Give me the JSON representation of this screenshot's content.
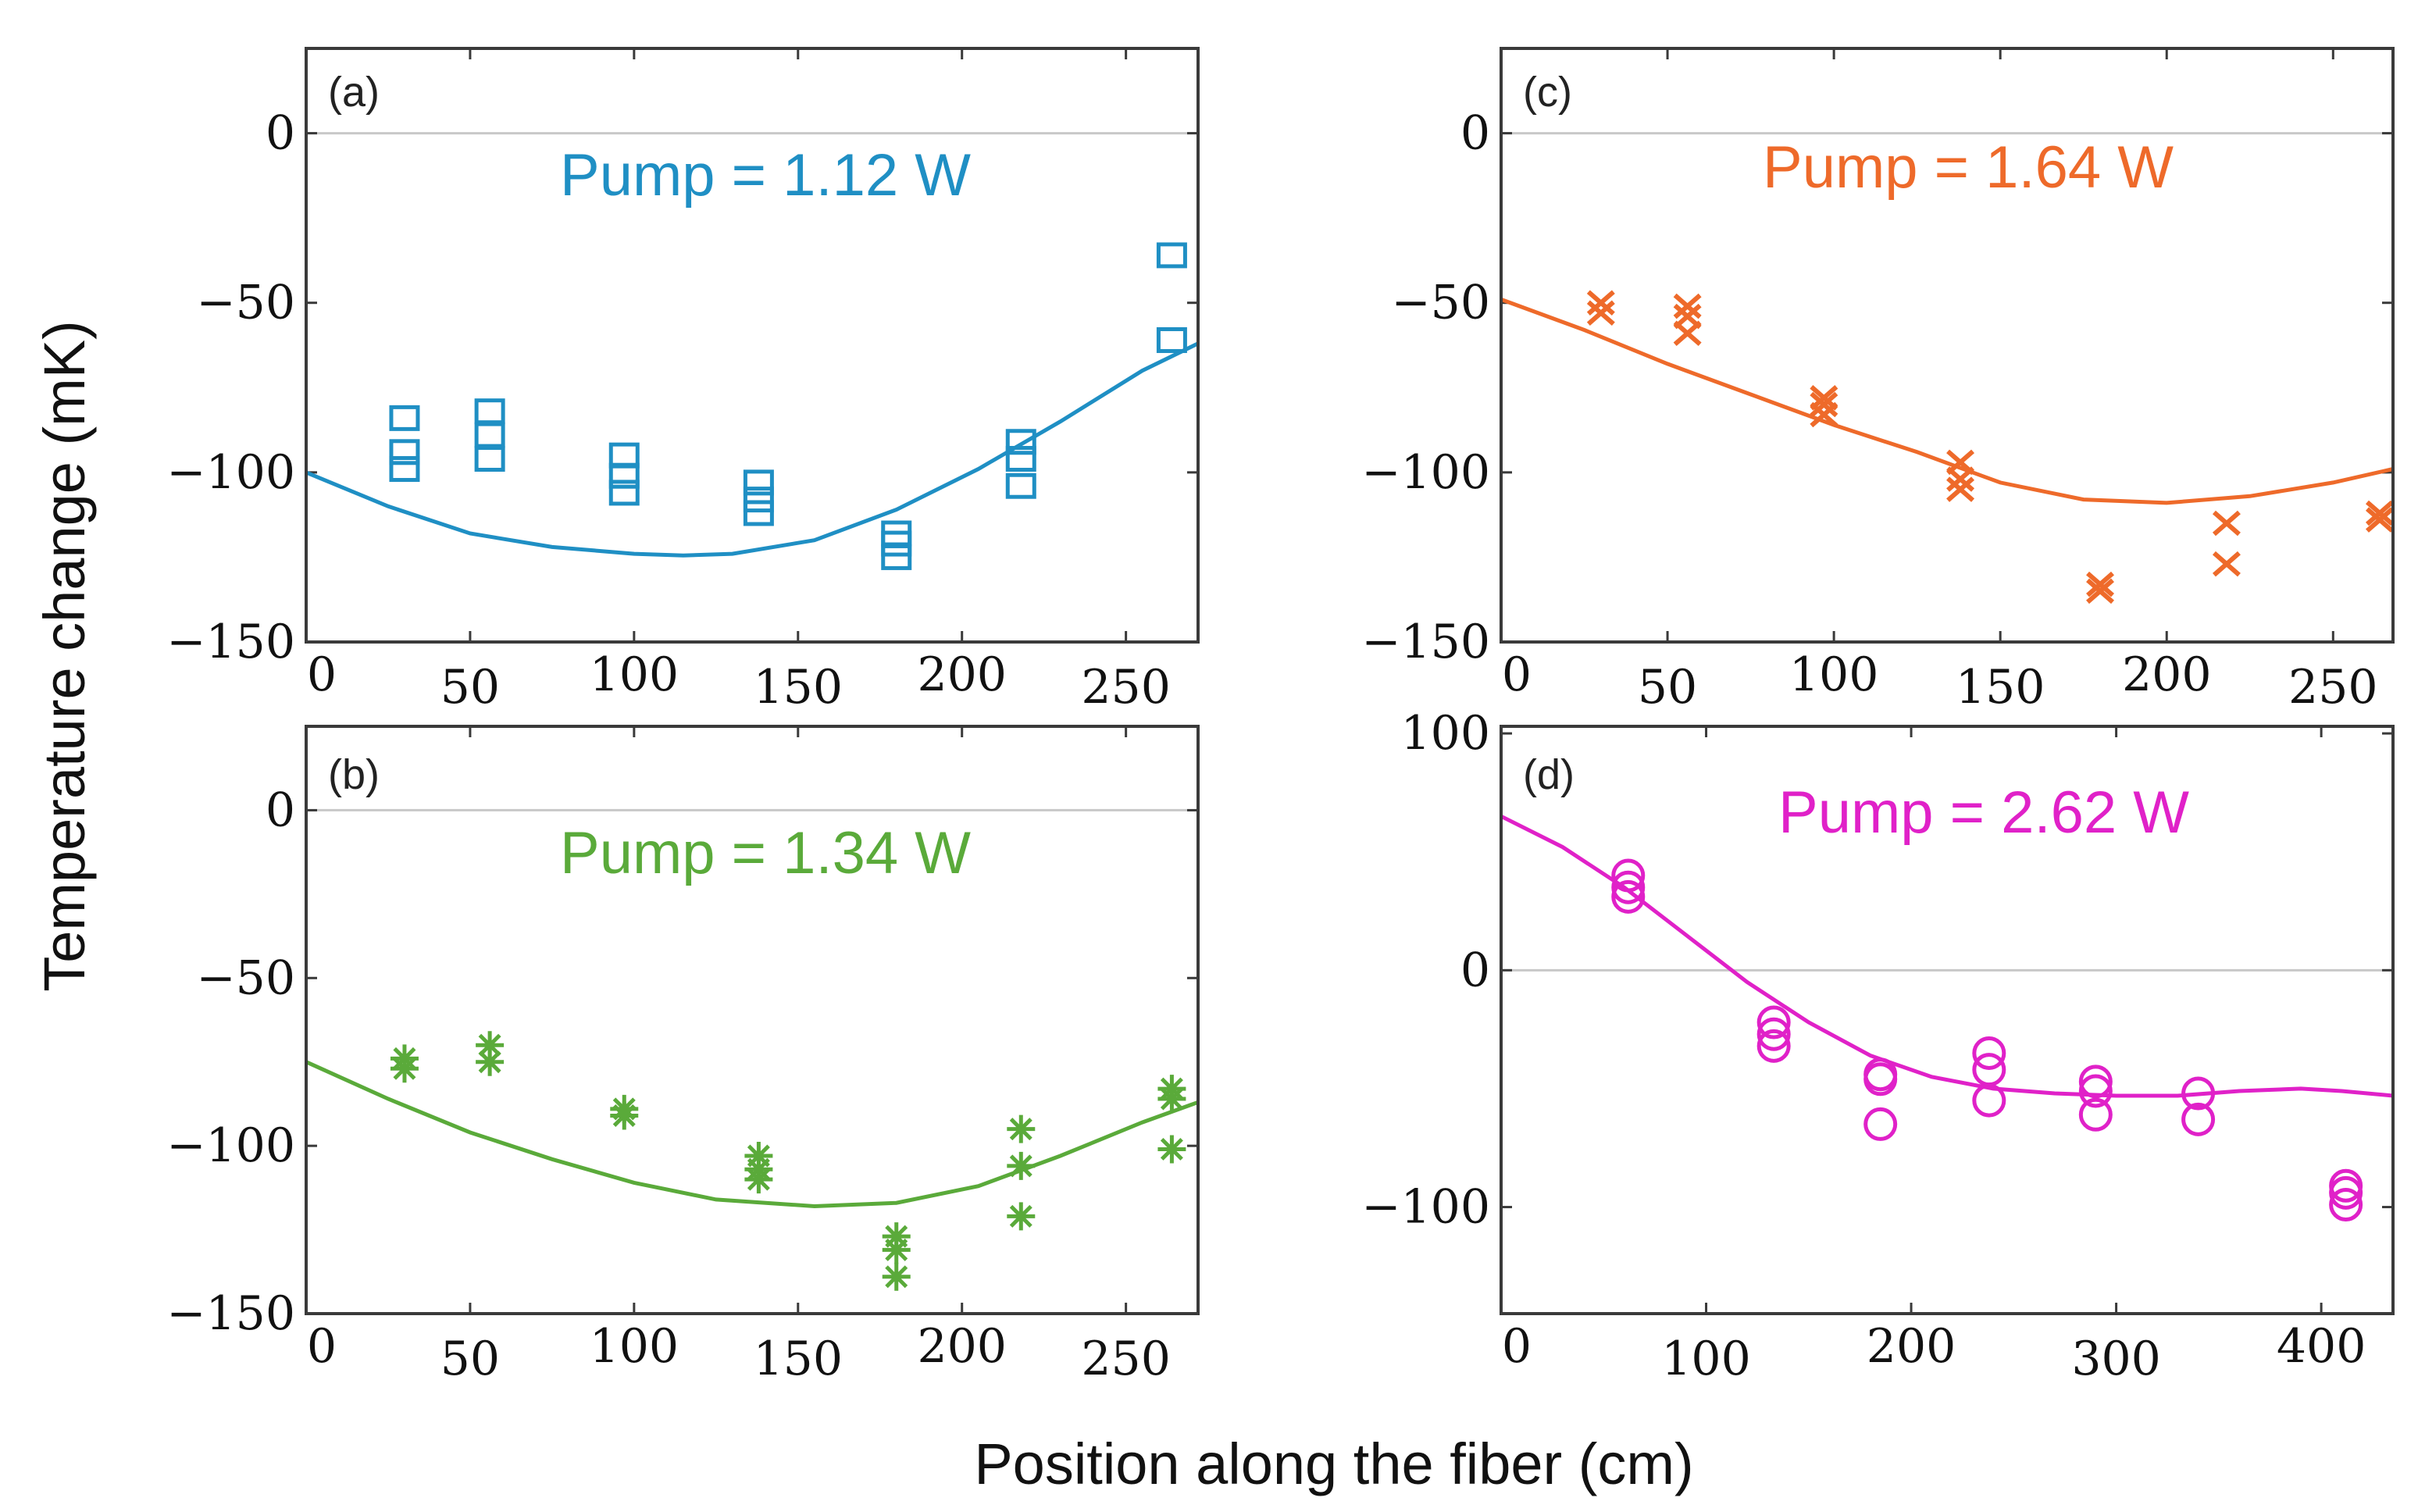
{
  "figure": {
    "ylabel": "Temperature change (mK)",
    "xlabel": "Position along the fiber (cm)"
  },
  "chart_data": [
    {
      "id": "a",
      "type": "scatter",
      "panel_label": "(a)",
      "annotation": "Pump = 1.12 W",
      "color": "#1f8fc4",
      "marker": "square",
      "xlim": [
        0,
        272
      ],
      "ylim": [
        -150,
        25
      ],
      "xticks": [
        0,
        50,
        100,
        150,
        200,
        250
      ],
      "yticks": [
        0,
        -50,
        -100,
        -150
      ],
      "xtick_labels": [
        "0",
        "50",
        "100",
        "150",
        "200",
        "250"
      ],
      "ytick_labels": [
        "0",
        "−50",
        "−100",
        "−150"
      ],
      "zero_line": true,
      "points": [
        {
          "x": 30,
          "y": -84
        },
        {
          "x": 30,
          "y": -94
        },
        {
          "x": 30,
          "y": -99
        },
        {
          "x": 56,
          "y": -82
        },
        {
          "x": 56,
          "y": -89
        },
        {
          "x": 56,
          "y": -96
        },
        {
          "x": 97,
          "y": -95
        },
        {
          "x": 97,
          "y": -101
        },
        {
          "x": 97,
          "y": -106
        },
        {
          "x": 138,
          "y": -103
        },
        {
          "x": 138,
          "y": -108
        },
        {
          "x": 138,
          "y": -112
        },
        {
          "x": 180,
          "y": -118
        },
        {
          "x": 180,
          "y": -121
        },
        {
          "x": 180,
          "y": -125
        },
        {
          "x": 218,
          "y": -91
        },
        {
          "x": 218,
          "y": -96
        },
        {
          "x": 218,
          "y": -104
        },
        {
          "x": 264,
          "y": -36
        },
        {
          "x": 264,
          "y": -61
        }
      ],
      "fit": [
        {
          "x": 0,
          "y": -100
        },
        {
          "x": 25,
          "y": -110
        },
        {
          "x": 50,
          "y": -118
        },
        {
          "x": 75,
          "y": -122
        },
        {
          "x": 100,
          "y": -124
        },
        {
          "x": 115,
          "y": -124.5
        },
        {
          "x": 130,
          "y": -124
        },
        {
          "x": 155,
          "y": -120
        },
        {
          "x": 180,
          "y": -111
        },
        {
          "x": 205,
          "y": -99
        },
        {
          "x": 230,
          "y": -85
        },
        {
          "x": 255,
          "y": -70
        },
        {
          "x": 272,
          "y": -62
        }
      ]
    },
    {
      "id": "b",
      "type": "scatter",
      "panel_label": "(b)",
      "annotation": "Pump = 1.34 W",
      "color": "#5aaa3a",
      "marker": "asterisk",
      "xlim": [
        0,
        272
      ],
      "ylim": [
        -150,
        25
      ],
      "xticks": [
        0,
        50,
        100,
        150,
        200,
        250
      ],
      "yticks": [
        0,
        -50,
        -100,
        -150
      ],
      "xtick_labels": [
        "0",
        "50",
        "100",
        "150",
        "200",
        "250"
      ],
      "ytick_labels": [
        "0",
        "−50",
        "−100",
        "−150"
      ],
      "zero_line": true,
      "points": [
        {
          "x": 30,
          "y": -74
        },
        {
          "x": 30,
          "y": -77
        },
        {
          "x": 56,
          "y": -70
        },
        {
          "x": 56,
          "y": -75
        },
        {
          "x": 97,
          "y": -89
        },
        {
          "x": 97,
          "y": -91
        },
        {
          "x": 138,
          "y": -103
        },
        {
          "x": 138,
          "y": -107
        },
        {
          "x": 138,
          "y": -110
        },
        {
          "x": 180,
          "y": -127
        },
        {
          "x": 180,
          "y": -131
        },
        {
          "x": 180,
          "y": -139
        },
        {
          "x": 218,
          "y": -95
        },
        {
          "x": 218,
          "y": -106
        },
        {
          "x": 218,
          "y": -121
        },
        {
          "x": 264,
          "y": -83
        },
        {
          "x": 264,
          "y": -86
        },
        {
          "x": 264,
          "y": -101
        }
      ],
      "fit": [
        {
          "x": 0,
          "y": -75
        },
        {
          "x": 25,
          "y": -86
        },
        {
          "x": 50,
          "y": -96
        },
        {
          "x": 75,
          "y": -104
        },
        {
          "x": 100,
          "y": -111
        },
        {
          "x": 125,
          "y": -116
        },
        {
          "x": 155,
          "y": -118
        },
        {
          "x": 180,
          "y": -117
        },
        {
          "x": 205,
          "y": -112
        },
        {
          "x": 230,
          "y": -103
        },
        {
          "x": 255,
          "y": -93
        },
        {
          "x": 272,
          "y": -87
        }
      ]
    },
    {
      "id": "c",
      "type": "scatter",
      "panel_label": "(c)",
      "annotation": "Pump = 1.64 W",
      "color": "#ee6a2a",
      "marker": "x",
      "xlim": [
        0,
        268
      ],
      "ylim": [
        -150,
        25
      ],
      "xticks": [
        0,
        50,
        100,
        150,
        200,
        250
      ],
      "yticks": [
        0,
        -50,
        -100,
        -150
      ],
      "xtick_labels": [
        "0",
        "50",
        "100",
        "150",
        "200",
        "250"
      ],
      "ytick_labels": [
        "0",
        "−50",
        "−100",
        "−150"
      ],
      "zero_line": true,
      "points": [
        {
          "x": 30,
          "y": -50
        },
        {
          "x": 30,
          "y": -53
        },
        {
          "x": 56,
          "y": -51
        },
        {
          "x": 56,
          "y": -54
        },
        {
          "x": 56,
          "y": -59
        },
        {
          "x": 97,
          "y": -78
        },
        {
          "x": 97,
          "y": -80
        },
        {
          "x": 97,
          "y": -83
        },
        {
          "x": 138,
          "y": -97
        },
        {
          "x": 138,
          "y": -102
        },
        {
          "x": 138,
          "y": -105
        },
        {
          "x": 180,
          "y": -133
        },
        {
          "x": 180,
          "y": -135
        },
        {
          "x": 218,
          "y": -115
        },
        {
          "x": 218,
          "y": -127
        },
        {
          "x": 264,
          "y": -112
        },
        {
          "x": 264,
          "y": -114
        }
      ],
      "fit": [
        {
          "x": 0,
          "y": -49
        },
        {
          "x": 25,
          "y": -58
        },
        {
          "x": 50,
          "y": -68
        },
        {
          "x": 75,
          "y": -77
        },
        {
          "x": 100,
          "y": -86
        },
        {
          "x": 125,
          "y": -94
        },
        {
          "x": 150,
          "y": -103
        },
        {
          "x": 175,
          "y": -108
        },
        {
          "x": 200,
          "y": -109
        },
        {
          "x": 225,
          "y": -107
        },
        {
          "x": 250,
          "y": -103
        },
        {
          "x": 268,
          "y": -99
        }
      ]
    },
    {
      "id": "d",
      "type": "scatter",
      "panel_label": "(d)",
      "annotation": "Pump = 2.62 W",
      "color": "#e021c8",
      "marker": "circle",
      "xlim": [
        0,
        435
      ],
      "ylim": [
        -145,
        103
      ],
      "xticks": [
        0,
        100,
        200,
        300,
        400
      ],
      "yticks": [
        100,
        0,
        -100
      ],
      "xtick_labels": [
        "0",
        "100",
        "200",
        "300",
        "400"
      ],
      "ytick_labels": [
        "100",
        "0",
        "−100"
      ],
      "zero_line": true,
      "points": [
        {
          "x": 62,
          "y": 40
        },
        {
          "x": 62,
          "y": 35
        },
        {
          "x": 62,
          "y": 31
        },
        {
          "x": 133,
          "y": -22
        },
        {
          "x": 133,
          "y": -27
        },
        {
          "x": 133,
          "y": -32
        },
        {
          "x": 185,
          "y": -44
        },
        {
          "x": 185,
          "y": -46
        },
        {
          "x": 185,
          "y": -65
        },
        {
          "x": 238,
          "y": -35
        },
        {
          "x": 238,
          "y": -42
        },
        {
          "x": 238,
          "y": -55
        },
        {
          "x": 290,
          "y": -47
        },
        {
          "x": 290,
          "y": -51
        },
        {
          "x": 290,
          "y": -61
        },
        {
          "x": 340,
          "y": -52
        },
        {
          "x": 340,
          "y": -63
        },
        {
          "x": 412,
          "y": -91
        },
        {
          "x": 412,
          "y": -94
        },
        {
          "x": 412,
          "y": -99
        }
      ],
      "fit": [
        {
          "x": 0,
          "y": 65
        },
        {
          "x": 30,
          "y": 52
        },
        {
          "x": 60,
          "y": 35
        },
        {
          "x": 90,
          "y": 15
        },
        {
          "x": 120,
          "y": -5
        },
        {
          "x": 150,
          "y": -22
        },
        {
          "x": 180,
          "y": -36
        },
        {
          "x": 210,
          "y": -45
        },
        {
          "x": 240,
          "y": -50
        },
        {
          "x": 270,
          "y": -52
        },
        {
          "x": 300,
          "y": -53
        },
        {
          "x": 330,
          "y": -53
        },
        {
          "x": 360,
          "y": -51
        },
        {
          "x": 390,
          "y": -50
        },
        {
          "x": 410,
          "y": -51
        },
        {
          "x": 435,
          "y": -53
        }
      ]
    }
  ]
}
